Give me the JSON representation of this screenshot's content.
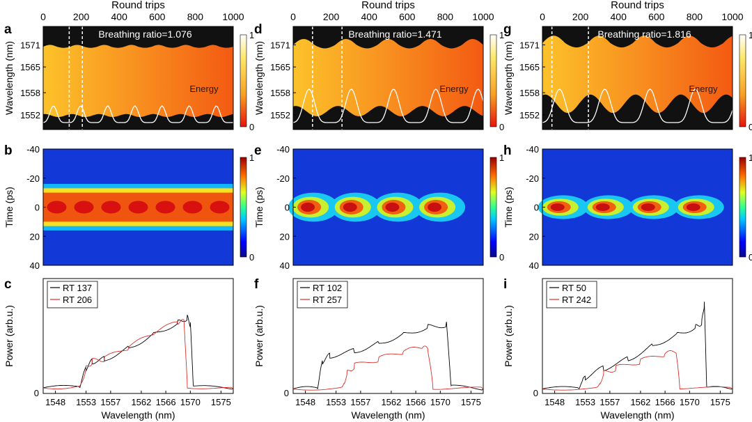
{
  "figure": {
    "top_axis_label": "Round trips",
    "round_trip_ticks": [
      "0",
      "200",
      "400",
      "600",
      "800",
      "1000"
    ]
  },
  "chart_data": [
    {
      "panel": "a",
      "type": "heatmap",
      "annotation": "Breathing ratio=1.076",
      "xlabel": "Round trips",
      "ylabel": "Wavelength (nm)",
      "xlim": [
        0,
        1000
      ],
      "ylim": [
        1548,
        1576
      ],
      "yticks": [
        "1571",
        "1565",
        "1558",
        "1552"
      ],
      "colorbar": {
        "min": "0",
        "max": "1",
        "scheme": "hot"
      },
      "marker_roundtrips": [
        137,
        206
      ],
      "energy_label": "Energy",
      "breathing_periods": 7,
      "spectrum_edges": {
        "upper_mean": 1570.5,
        "upper_amp": 0.5,
        "lower_mean": 1551.8,
        "lower_amp": 0.4
      }
    },
    {
      "panel": "d",
      "type": "heatmap",
      "annotation": "Breathing ratio=1.471",
      "xlabel": "Round trips",
      "ylabel": "Wavelength (nm)",
      "xlim": [
        0,
        1000
      ],
      "ylim": [
        1548,
        1576
      ],
      "yticks": [
        "1571",
        "1565",
        "1558",
        "1552"
      ],
      "colorbar": {
        "min": "0",
        "max": "1",
        "scheme": "hot"
      },
      "marker_roundtrips": [
        102,
        257
      ],
      "energy_label": "Energy",
      "breathing_periods": 4.5,
      "spectrum_edges": {
        "upper_mean": 1571,
        "upper_amp": 1.6,
        "lower_mean": 1553,
        "lower_amp": 1.4
      }
    },
    {
      "panel": "g",
      "type": "heatmap",
      "annotation": "Breathing ratio=1.816",
      "xlabel": "Round trips",
      "ylabel": "Wavelength (nm)",
      "xlim": [
        0,
        1000
      ],
      "ylim": [
        1548,
        1576
      ],
      "yticks": [
        "1571",
        "1565",
        "1558",
        "1552"
      ],
      "colorbar": {
        "min": "0",
        "max": "1",
        "scheme": "hot"
      },
      "marker_roundtrips": [
        50,
        242
      ],
      "energy_label": "Energy",
      "breathing_periods": 4.2,
      "spectrum_edges": {
        "upper_mean": 1571.5,
        "upper_amp": 2,
        "lower_mean": 1555,
        "lower_amp": 2.5
      }
    },
    {
      "panel": "b",
      "type": "heatmap",
      "xlabel": "Round trips",
      "ylabel": "Time (ps)",
      "xlim": [
        0,
        1000
      ],
      "ylim": [
        -40,
        40
      ],
      "yticks": [
        "-40",
        "-20",
        "0",
        "20",
        "40"
      ],
      "colorbar": {
        "min": "0",
        "max": "1",
        "scheme": "jet"
      },
      "pulse_periods": 7,
      "pulse_width_ps": 13
    },
    {
      "panel": "e",
      "type": "heatmap",
      "xlabel": "Round trips",
      "ylabel": "Time (ps)",
      "xlim": [
        0,
        1000
      ],
      "ylim": [
        -40,
        40
      ],
      "yticks": [
        "-40",
        "-20",
        "0",
        "20",
        "40"
      ],
      "colorbar": {
        "min": "0",
        "max": "1",
        "scheme": "jet"
      },
      "pulse_periods": 4.5,
      "pulse_width_ps": 11
    },
    {
      "panel": "h",
      "type": "heatmap",
      "xlabel": "Round trips",
      "ylabel": "Time (ps)",
      "xlim": [
        0,
        1000
      ],
      "ylim": [
        -40,
        40
      ],
      "yticks": [
        "-40",
        "-20",
        "0",
        "20",
        "40"
      ],
      "colorbar": {
        "min": "0",
        "max": "1",
        "scheme": "jet"
      },
      "pulse_periods": 4.2,
      "pulse_width_ps": 9
    },
    {
      "panel": "c",
      "type": "line",
      "xlabel": "Wavelength (nm)",
      "ylabel": "Power (arb.u.)",
      "xlim": [
        1546,
        1577
      ],
      "ylim": [
        0,
        1
      ],
      "xticks": [
        "1548",
        "1553",
        "1557",
        "1562",
        "1566",
        "1570",
        "1575"
      ],
      "ytick_label": "0",
      "series": [
        {
          "name": "RT 137",
          "color": "#000000",
          "x": [
            1546,
            1552,
            1553,
            1554,
            1556,
            1560,
            1564,
            1568,
            1569.5,
            1570,
            1570.5,
            1577
          ],
          "y": [
            0.05,
            0.06,
            0.22,
            0.28,
            0.3,
            0.4,
            0.52,
            0.62,
            0.66,
            0.6,
            0.06,
            0.04
          ]
        },
        {
          "name": "RT 206",
          "color": "#d9302c",
          "x": [
            1546,
            1552,
            1553,
            1554,
            1556,
            1560,
            1564,
            1568,
            1569,
            1569.5,
            1577
          ],
          "y": [
            0.05,
            0.06,
            0.22,
            0.28,
            0.3,
            0.4,
            0.52,
            0.62,
            0.62,
            0.06,
            0.04
          ]
        }
      ]
    },
    {
      "panel": "f",
      "type": "line",
      "xlabel": "Wavelength (nm)",
      "ylabel": "Power (arb.u.)",
      "xlim": [
        1546,
        1577
      ],
      "ylim": [
        0,
        1
      ],
      "xticks": [
        "1548",
        "1553",
        "1557",
        "1562",
        "1566",
        "1570",
        "1575"
      ],
      "ytick_label": "0",
      "series": [
        {
          "name": "RT 102",
          "color": "#000000",
          "x": [
            1546,
            1550,
            1550.8,
            1552,
            1556,
            1560,
            1564,
            1568,
            1571,
            1571.8,
            1577
          ],
          "y": [
            0.04,
            0.05,
            0.28,
            0.33,
            0.37,
            0.44,
            0.52,
            0.58,
            0.6,
            0.06,
            0.04
          ]
        },
        {
          "name": "RT 257",
          "color": "#d9302c",
          "x": [
            1546,
            1554,
            1554.8,
            1556,
            1560,
            1564,
            1567,
            1568,
            1568.8,
            1577
          ],
          "y": [
            0.04,
            0.05,
            0.18,
            0.24,
            0.3,
            0.36,
            0.4,
            0.38,
            0.05,
            0.04
          ]
        }
      ]
    },
    {
      "panel": "i",
      "type": "line",
      "xlabel": "Wavelength (nm)",
      "ylabel": "Power (arb.u.)",
      "xlim": [
        1546,
        1577
      ],
      "ylim": [
        0,
        1
      ],
      "xticks": [
        "1548",
        "1553",
        "1557",
        "1562",
        "1566",
        "1570",
        "1575"
      ],
      "ytick_label": "0",
      "series": [
        {
          "name": "RT 50",
          "color": "#000000",
          "x": [
            1546,
            1552,
            1553,
            1556,
            1560,
            1564,
            1568,
            1571,
            1572,
            1572.4,
            1572.8,
            1577
          ],
          "y": [
            0.04,
            0.05,
            0.14,
            0.22,
            0.3,
            0.42,
            0.52,
            0.58,
            0.62,
            0.78,
            0.05,
            0.04
          ]
        },
        {
          "name": "RT 242",
          "color": "#d9302c",
          "x": [
            1546,
            1555,
            1556,
            1558,
            1562,
            1566,
            1567.8,
            1568.4,
            1577
          ],
          "y": [
            0.04,
            0.05,
            0.18,
            0.22,
            0.28,
            0.34,
            0.36,
            0.05,
            0.04
          ]
        }
      ]
    }
  ]
}
